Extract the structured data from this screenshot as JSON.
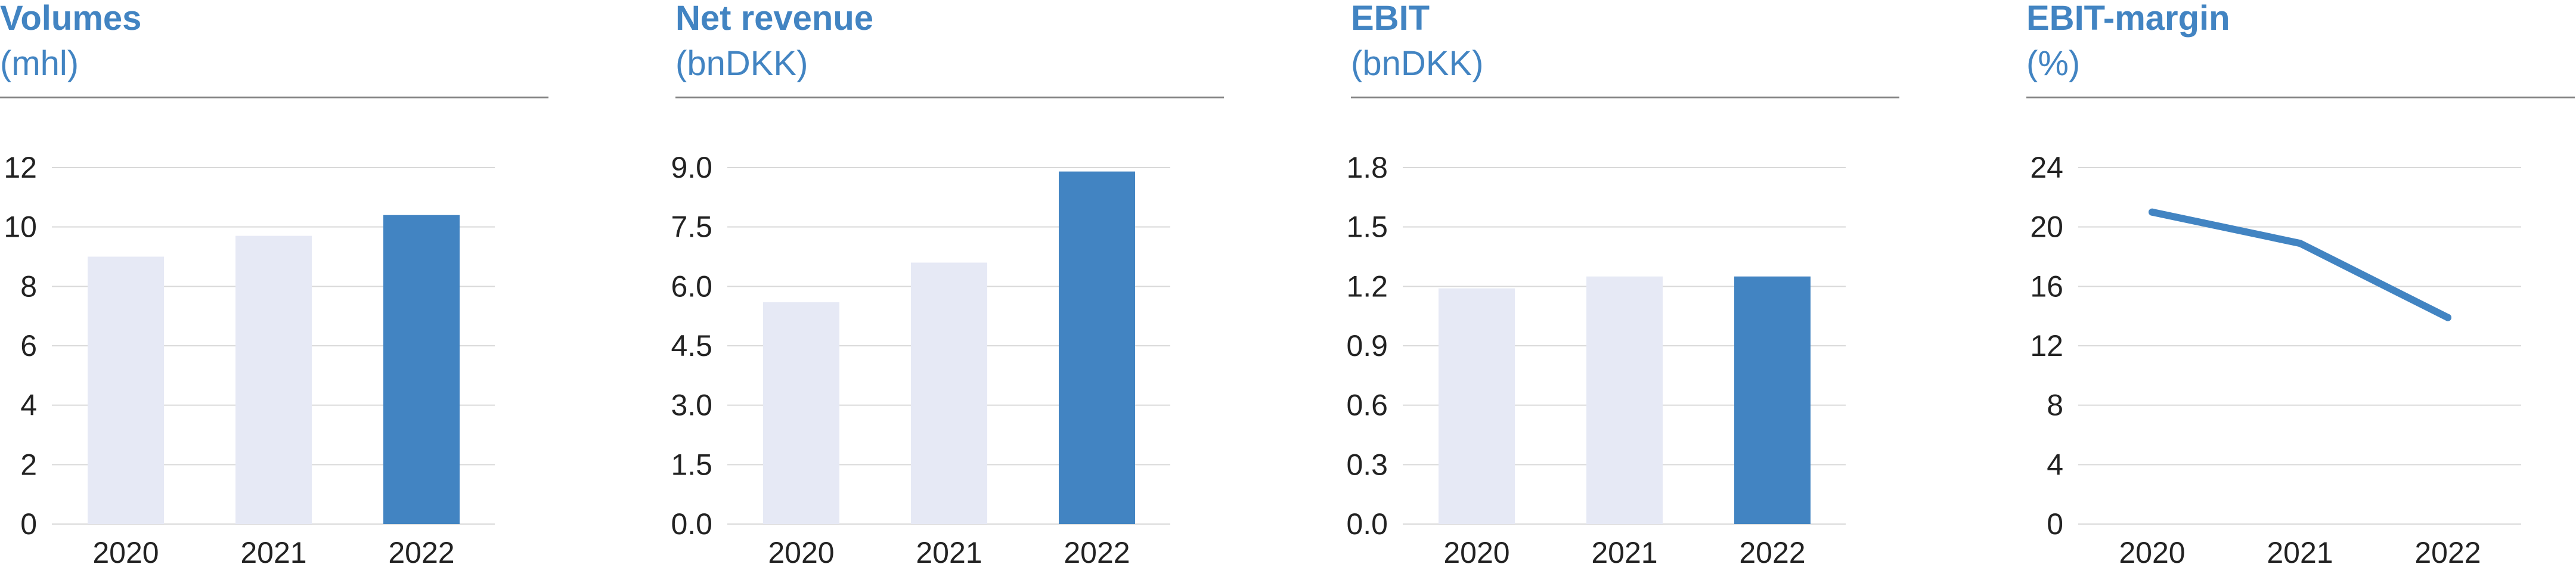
{
  "colors": {
    "accent": "#4284c2",
    "muted_bar": "#e6e9f5",
    "grid": "#d9d9d9",
    "text": "#222222"
  },
  "panels": [
    {
      "title": "Volumes",
      "unit": "(mhl)"
    },
    {
      "title": "Net revenue",
      "unit": "(bnDKK)"
    },
    {
      "title": "EBIT",
      "unit": "(bnDKK)"
    },
    {
      "title": "EBIT-margin",
      "unit": "(%)"
    }
  ],
  "chart_data": [
    {
      "type": "bar",
      "title": "Volumes",
      "subtitle": "(mhl)",
      "categories": [
        "2020",
        "2021",
        "2022"
      ],
      "values": [
        9.0,
        9.7,
        10.4
      ],
      "highlight_index": 2,
      "ylim": [
        0,
        12
      ],
      "yticks": [
        "0",
        "2",
        "4",
        "6",
        "8",
        "10",
        "12"
      ],
      "grid": true
    },
    {
      "type": "bar",
      "title": "Net revenue",
      "subtitle": "(bnDKK)",
      "categories": [
        "2020",
        "2021",
        "2022"
      ],
      "values": [
        5.6,
        6.6,
        8.9
      ],
      "highlight_index": 2,
      "ylim": [
        0,
        9
      ],
      "yticks": [
        "0.0",
        "1.5",
        "3.0",
        "4.5",
        "6.0",
        "7.5",
        "9.0"
      ],
      "grid": true
    },
    {
      "type": "bar",
      "title": "EBIT",
      "subtitle": "(bnDKK)",
      "categories": [
        "2020",
        "2021",
        "2022"
      ],
      "values": [
        1.19,
        1.25,
        1.25
      ],
      "highlight_index": 2,
      "ylim": [
        0,
        1.8
      ],
      "yticks": [
        "0.0",
        "0.3",
        "0.6",
        "0.9",
        "1.2",
        "1.5",
        "1.8"
      ],
      "grid": true
    },
    {
      "type": "line",
      "title": "EBIT-margin",
      "subtitle": "(%)",
      "categories": [
        "2020",
        "2021",
        "2022"
      ],
      "values": [
        21.0,
        18.9,
        13.9
      ],
      "ylim": [
        0,
        24
      ],
      "yticks": [
        "0",
        "4",
        "8",
        "12",
        "16",
        "20",
        "24"
      ],
      "grid": true
    }
  ]
}
